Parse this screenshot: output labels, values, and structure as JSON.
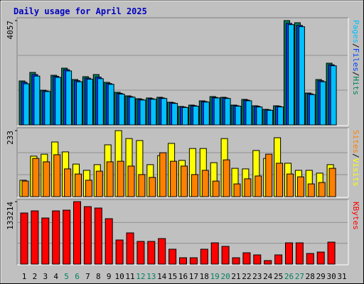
{
  "chart_data": {
    "type": "bar",
    "title": "Daily usage for April 2025",
    "categories": [
      "1",
      "2",
      "3",
      "4",
      "5",
      "6",
      "7",
      "8",
      "9",
      "10",
      "11",
      "12",
      "13",
      "14",
      "15",
      "16",
      "17",
      "18",
      "19",
      "20",
      "21",
      "22",
      "23",
      "24",
      "25",
      "26",
      "27",
      "28",
      "29",
      "30",
      "31"
    ],
    "category_colors": [
      "#000000",
      "#000000",
      "#000000",
      "#000000",
      "#00805c",
      "#00805c",
      "#000000",
      "#000000",
      "#000000",
      "#000000",
      "#000000",
      "#00805c",
      "#00805c",
      "#000000",
      "#000000",
      "#000000",
      "#000000",
      "#000000",
      "#00805c",
      "#00805c",
      "#000000",
      "#000000",
      "#000000",
      "#000000",
      "#000000",
      "#00805c",
      "#00805c",
      "#000000",
      "#000000",
      "#000000",
      "#000000"
    ],
    "legend_separator": "/",
    "panels": [
      {
        "ylim": [
          0,
          4057
        ],
        "yticks": [
          4057
        ],
        "series": [
          {
            "name": "Hits",
            "color": "#00805c",
            "values": [
              1711,
              2042,
              1352,
              1932,
              2208,
              1766,
              1877,
              1960,
              1656,
              1270,
              1132,
              1021,
              1049,
              1076,
              883,
              718,
              773,
              938,
              1104,
              1076,
              773,
              994,
              745,
              607,
              745,
              4057,
              3974,
              1242,
              1766,
              2401,
              0
            ]
          },
          {
            "name": "Files",
            "color": "#0040ff",
            "values": [
              1660,
              1960,
              1320,
              1890,
              2150,
              1720,
              1820,
              1860,
              1610,
              1230,
              1100,
              990,
              1020,
              1050,
              860,
              700,
              750,
              910,
              1070,
              1050,
              750,
              965,
              725,
              590,
              725,
              3950,
              3870,
              1210,
              1720,
              2340,
              0
            ]
          },
          {
            "name": "Pages",
            "color": "#00c0ff",
            "values": [
              1600,
              1900,
              1300,
              1850,
              2100,
              1680,
              1780,
              1800,
              1580,
              1200,
              1080,
              970,
              1000,
              1030,
              840,
              680,
              730,
              890,
              1050,
              1030,
              730,
              940,
              700,
              570,
              700,
              3900,
              3820,
              1180,
              1680,
              2300,
              0
            ]
          }
        ]
      },
      {
        "ylim": [
          0,
          233
        ],
        "yticks": [
          233
        ],
        "series": [
          {
            "name": "Visits",
            "color": "#ffff00",
            "values": [
              58,
              143,
              150,
              193,
              158,
              115,
              93,
              113,
              183,
              233,
              205,
              198,
              113,
              145,
              188,
              128,
              170,
              170,
              120,
              205,
              100,
              98,
              163,
              135,
              208,
              118,
              93,
              93,
              83,
              113,
              0
            ]
          },
          {
            "name": "Sites",
            "color": "#ff8000",
            "values": [
              55,
              135,
              123,
              148,
              98,
              80,
              58,
              90,
              123,
              125,
              108,
              78,
              68,
              155,
              125,
              108,
              78,
              93,
              55,
              130,
              45,
              63,
              73,
              150,
              118,
              80,
              70,
              45,
              50,
              100,
              0
            ]
          }
        ]
      },
      {
        "ylim": [
          0,
          133214
        ],
        "yticks": [
          133214
        ],
        "series": [
          {
            "name": "KBytes",
            "color": "#ff0000",
            "values": [
              108993,
              113535,
              98397,
              113535,
              115049,
              133214,
              122617,
              119590,
              96883,
              51469,
              66607,
              48441,
              48441,
              54497,
              31790,
              13624,
              13624,
              31790,
              45414,
              37845,
              13624,
              24221,
              19680,
              7569,
              19680,
              45414,
              45414,
              22707,
              25735,
              46928,
              0
            ]
          }
        ]
      }
    ]
  }
}
